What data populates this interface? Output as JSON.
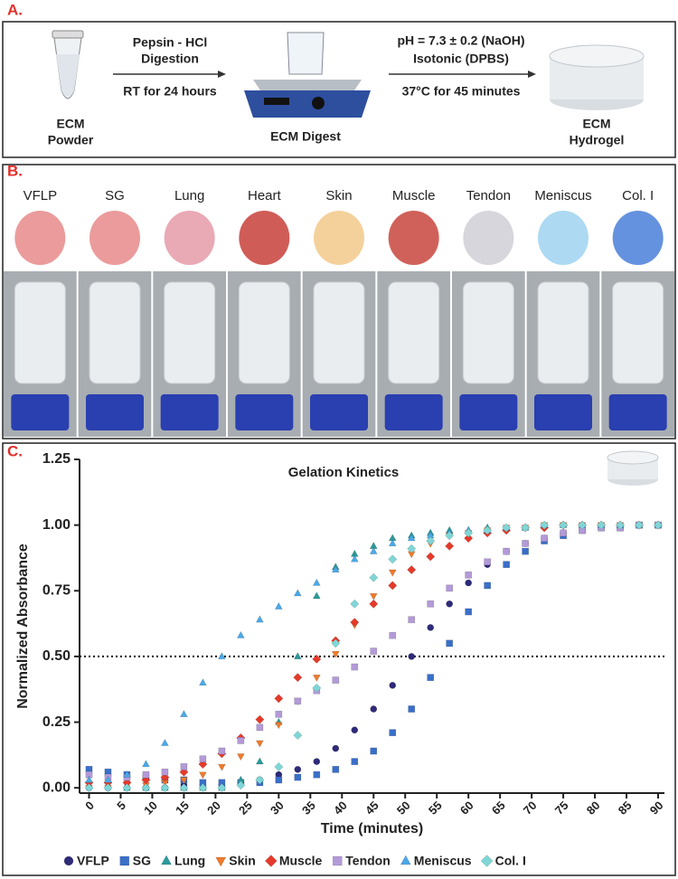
{
  "panel_a": {
    "label": "A.",
    "powder": [
      "ECM",
      "Powder"
    ],
    "step1_top": [
      "Pepsin - HCl",
      "Digestion"
    ],
    "step1_bottom": "RT for 24 hours",
    "digest": "ECM Digest",
    "step2_top": [
      "pH = 7.3 ± 0.2 (NaOH)",
      "Isotonic (DPBS)"
    ],
    "step2_bottom": "37°C for 45 minutes",
    "hydrogel": [
      "ECM",
      "Hydrogel"
    ]
  },
  "panel_b": {
    "label": "B.",
    "tissues": [
      "VFLP",
      "SG",
      "Lung",
      "Heart",
      "Skin",
      "Muscle",
      "Tendon",
      "Meniscus",
      "Col. I"
    ]
  },
  "panel_c": {
    "label": "C."
  },
  "chart_data": {
    "type": "scatter",
    "title": "Gelation Kinetics",
    "x_label": "Time (minutes)",
    "y_label": "Normalized Absorbance",
    "x": [
      0,
      3,
      6,
      9,
      12,
      15,
      18,
      21,
      24,
      27,
      30,
      33,
      36,
      39,
      42,
      45,
      48,
      51,
      54,
      57,
      60,
      63,
      66,
      69,
      72,
      75,
      78,
      81,
      84,
      87,
      90
    ],
    "xlim": [
      -1.5,
      91
    ],
    "xticks": [
      0,
      5,
      10,
      15,
      20,
      25,
      30,
      35,
      40,
      45,
      50,
      55,
      60,
      65,
      70,
      75,
      80,
      85,
      90
    ],
    "ylim": [
      -0.02,
      1.25
    ],
    "yticks": [
      {
        "value": 0,
        "label": "0.00"
      },
      {
        "value": 0.25,
        "label": "0.25"
      },
      {
        "value": 0.5,
        "label": "0.50"
      },
      {
        "value": 0.75,
        "label": "0.75"
      },
      {
        "value": 1,
        "label": "1.00"
      },
      {
        "value": 1.25,
        "label": "1.25"
      }
    ],
    "reference_line": 0.5,
    "series": [
      {
        "name": "VFLP",
        "color": "#2e2a7a",
        "marker": "circle",
        "values": [
          0,
          0,
          0,
          0,
          0,
          0.01,
          0.01,
          0.01,
          0.02,
          0.03,
          0.05,
          0.07,
          0.1,
          0.15,
          0.22,
          0.3,
          0.39,
          0.5,
          0.61,
          0.7,
          0.78,
          0.85,
          0.9,
          0.93,
          0.95,
          0.97,
          0.98,
          0.99,
          0.99,
          1,
          1
        ]
      },
      {
        "name": "SG",
        "color": "#3a6fc9",
        "marker": "square",
        "values": [
          0.07,
          0.06,
          0.05,
          0.04,
          0.03,
          0.03,
          0.02,
          0.02,
          0.02,
          0.02,
          0.03,
          0.04,
          0.05,
          0.07,
          0.1,
          0.14,
          0.21,
          0.3,
          0.42,
          0.55,
          0.67,
          0.77,
          0.85,
          0.9,
          0.94,
          0.96,
          0.98,
          0.99,
          0.99,
          1,
          1
        ]
      },
      {
        "name": "Lung",
        "color": "#2a9a9a",
        "marker": "triangle",
        "values": [
          0.01,
          0.01,
          0,
          0,
          0,
          0,
          0,
          0,
          0.03,
          0.1,
          0.25,
          0.5,
          0.73,
          0.84,
          0.89,
          0.92,
          0.95,
          0.96,
          0.97,
          0.98,
          0.98,
          0.99,
          0.99,
          0.99,
          1,
          1,
          1,
          1,
          1,
          1,
          1
        ]
      },
      {
        "name": "Skin",
        "color": "#f07a2a",
        "marker": "triangle-down",
        "values": [
          0,
          0,
          0.01,
          0.01,
          0.02,
          0.03,
          0.05,
          0.08,
          0.12,
          0.17,
          0.24,
          0.33,
          0.42,
          0.51,
          0.62,
          0.73,
          0.82,
          0.89,
          0.93,
          0.96,
          0.97,
          0.98,
          0.99,
          0.99,
          1,
          1,
          1,
          1,
          1,
          1,
          1
        ]
      },
      {
        "name": "Muscle",
        "color": "#e53a2a",
        "marker": "diamond",
        "values": [
          0.02,
          0.02,
          0.02,
          0.03,
          0.04,
          0.06,
          0.09,
          0.13,
          0.19,
          0.26,
          0.34,
          0.42,
          0.49,
          0.56,
          0.63,
          0.7,
          0.77,
          0.83,
          0.88,
          0.92,
          0.95,
          0.97,
          0.98,
          0.99,
          0.99,
          1,
          1,
          1,
          1,
          1,
          1
        ]
      },
      {
        "name": "Tendon",
        "color": "#b39ad8",
        "marker": "square",
        "values": [
          0.05,
          0.04,
          0.04,
          0.05,
          0.06,
          0.08,
          0.11,
          0.14,
          0.18,
          0.23,
          0.28,
          0.33,
          0.37,
          0.41,
          0.46,
          0.52,
          0.58,
          0.64,
          0.7,
          0.76,
          0.81,
          0.86,
          0.9,
          0.93,
          0.95,
          0.97,
          0.98,
          0.99,
          0.99,
          1,
          1
        ]
      },
      {
        "name": "Meniscus",
        "color": "#4aa8e8",
        "marker": "triangle",
        "values": [
          0.03,
          0.03,
          0.05,
          0.09,
          0.17,
          0.28,
          0.4,
          0.5,
          0.58,
          0.64,
          0.69,
          0.74,
          0.78,
          0.83,
          0.87,
          0.9,
          0.93,
          0.95,
          0.96,
          0.97,
          0.98,
          0.98,
          0.99,
          0.99,
          1,
          1,
          1,
          1,
          1,
          1,
          1
        ]
      },
      {
        "name": "Col. I",
        "color": "#7fd6d6",
        "marker": "diamond",
        "values": [
          0,
          0,
          0,
          0,
          0,
          0,
          0,
          0,
          0.01,
          0.03,
          0.08,
          0.2,
          0.38,
          0.55,
          0.7,
          0.8,
          0.87,
          0.91,
          0.94,
          0.96,
          0.97,
          0.98,
          0.99,
          0.99,
          1,
          1,
          1,
          1,
          1,
          1,
          1
        ]
      }
    ]
  }
}
